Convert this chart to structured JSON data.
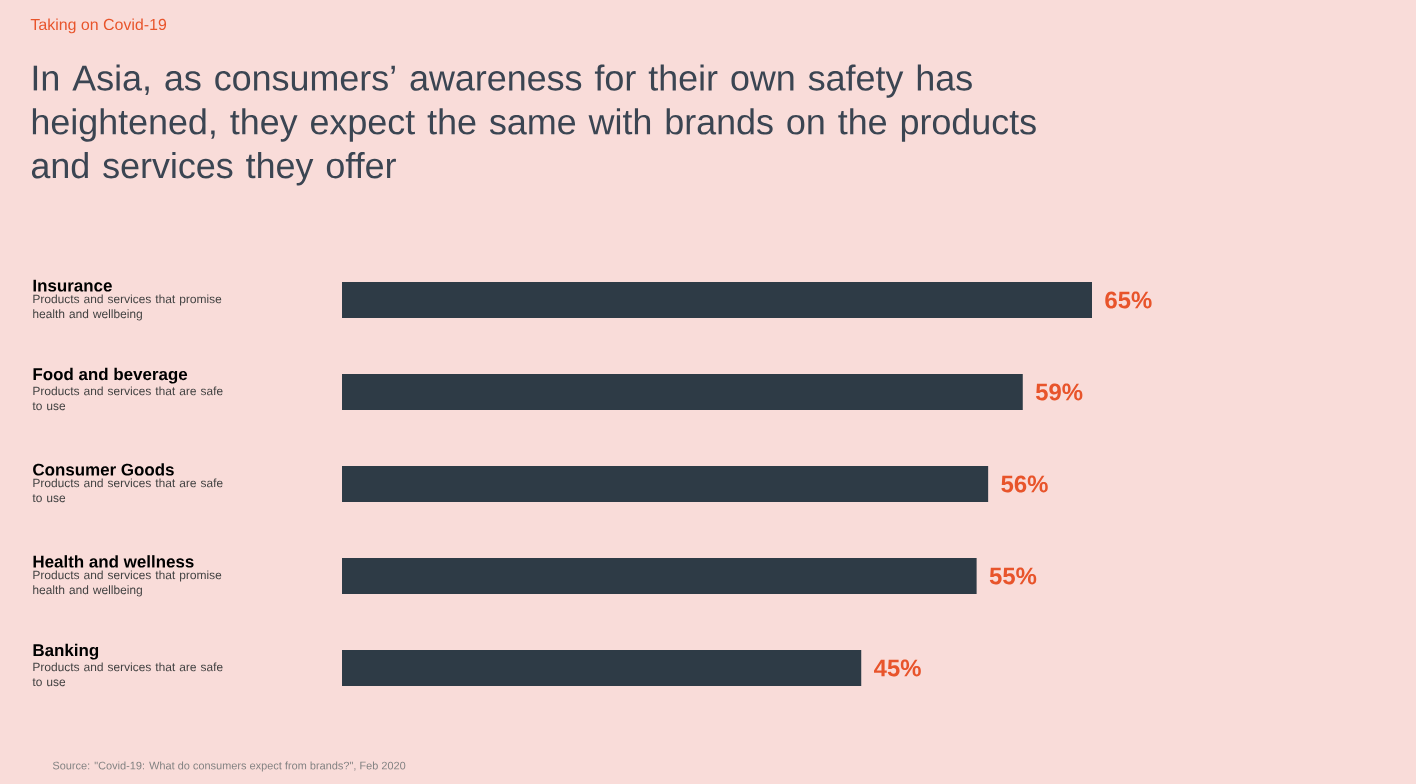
{
  "chart_data": {
    "type": "bar",
    "orientation": "horizontal",
    "subtitle": "Taking on Covid-19",
    "title": "In Asia, as consumers’ awareness for their own safety has heightened, they expect the same with brands on the products and services they offer",
    "categories": [
      "Insurance",
      "Food and beverage",
      "Consumer Goods",
      "Health and wellness",
      "Banking"
    ],
    "values": [
      65,
      59,
      56,
      55,
      45
    ],
    "value_labels": [
      "65%",
      "59%",
      "56%",
      "55%",
      "45%"
    ],
    "color": "#2e3b46",
    "tick_labels": "y",
    "annotations": [
      "Products and services that promise health and wellbeing",
      "Products and services that are safe to use",
      "Products and services that are safe to use",
      "Products and services that promise health and wellbeing",
      "Products and services that are safe to use",
      "Source: \"Covid-19: What do consumers expect from brands?\", Feb 2020"
    ]
  }
}
